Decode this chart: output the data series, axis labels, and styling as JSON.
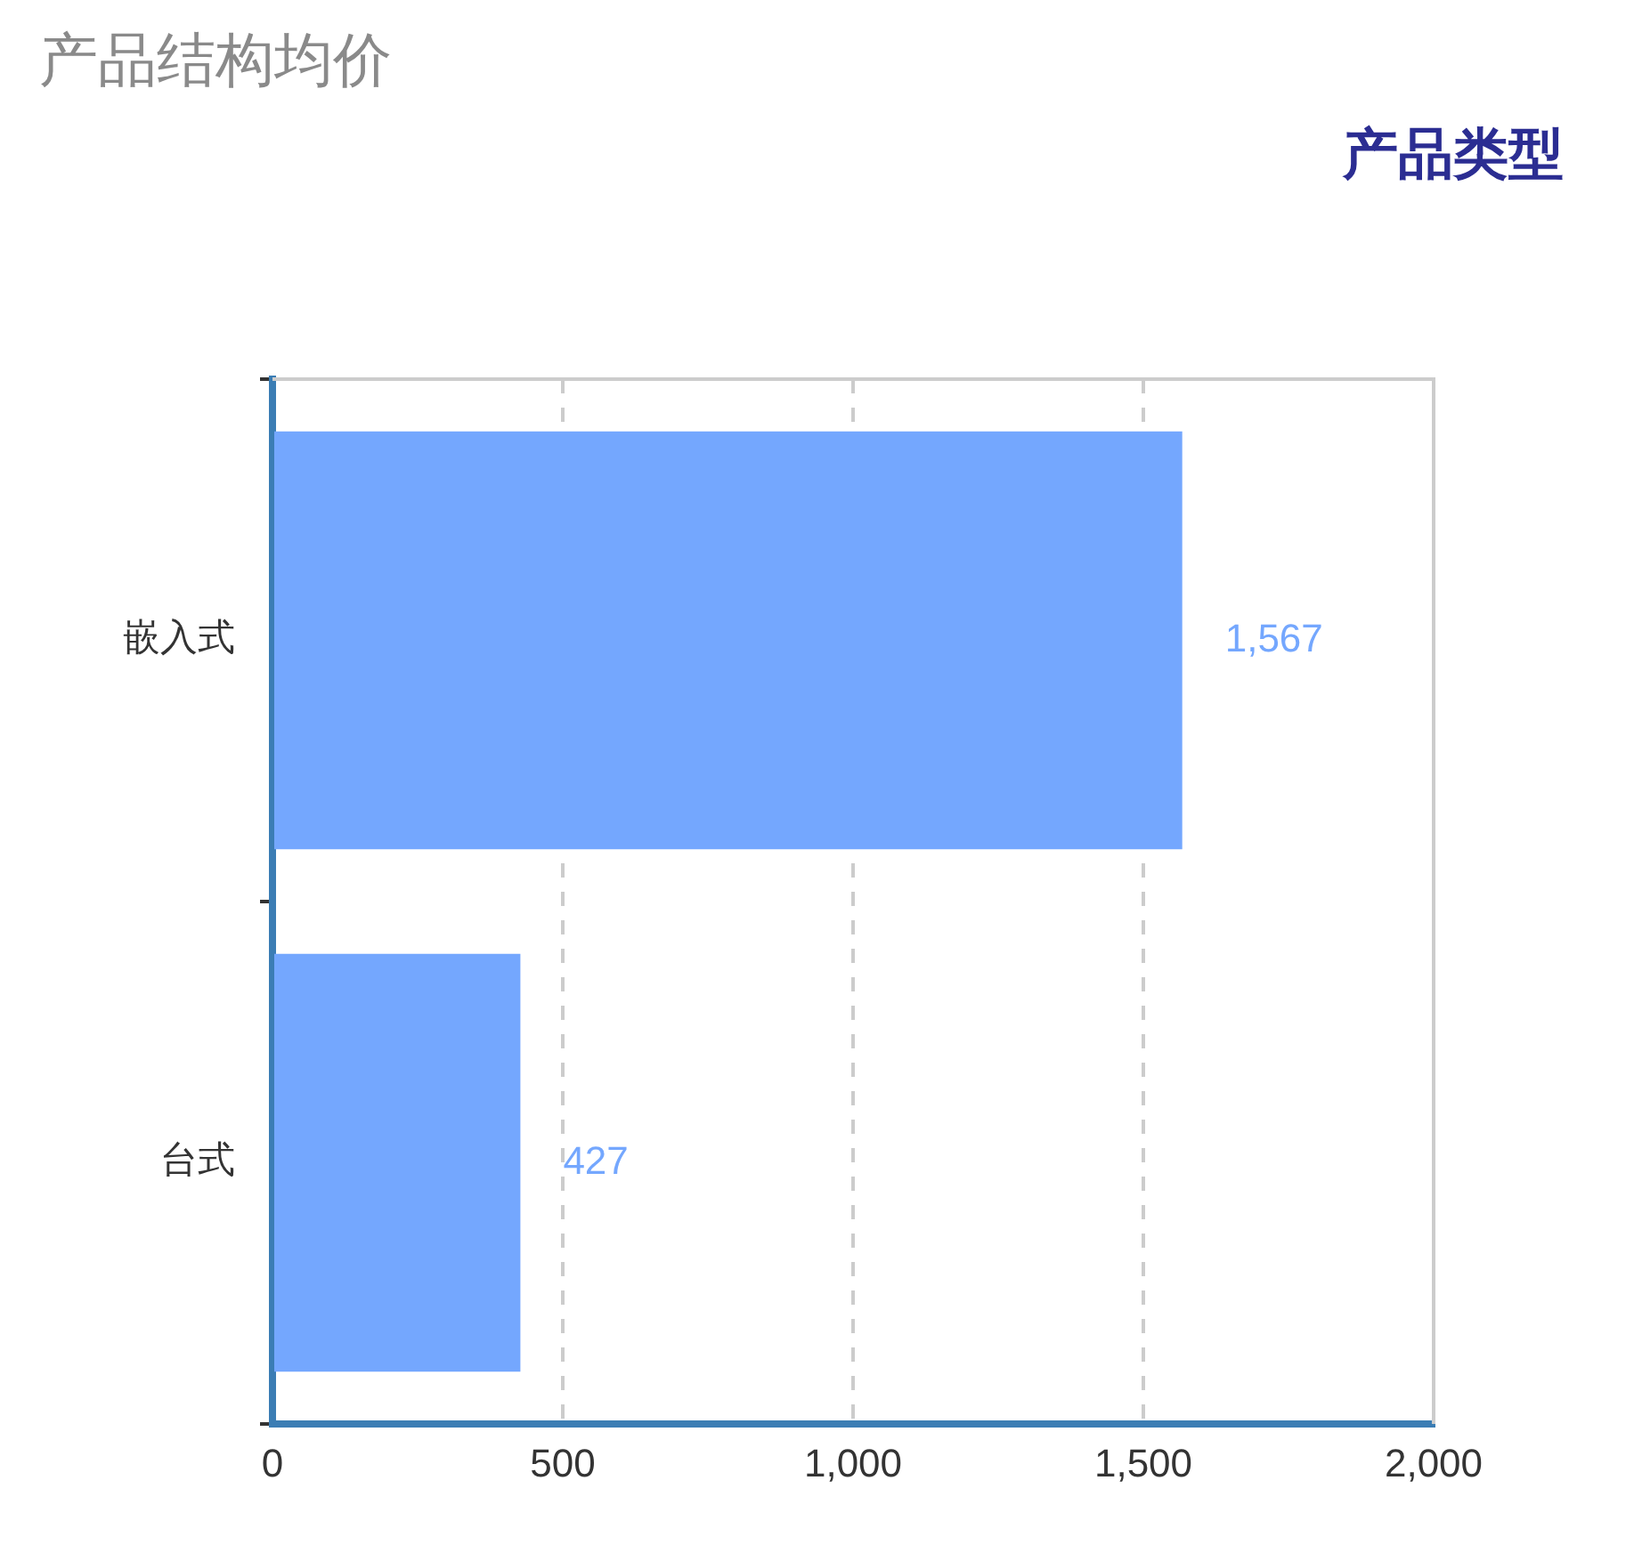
{
  "chart_data": {
    "type": "bar",
    "orientation": "horizontal",
    "title": "产品结构均价",
    "ylabel": "产品类型",
    "categories": [
      "嵌入式",
      "台式"
    ],
    "values": [
      1567,
      427
    ],
    "color": "#74a7fe",
    "xlim": [
      0,
      2000
    ],
    "xticks": [
      0,
      500,
      {
        "value": 1000,
        "label": "1,000"
      },
      {
        "value": 1500,
        "label": "1,500"
      },
      {
        "value": 2000,
        "label": "2,000"
      }
    ],
    "grid": "x",
    "value_labels": [
      "1,567",
      "427"
    ],
    "legend": false
  }
}
